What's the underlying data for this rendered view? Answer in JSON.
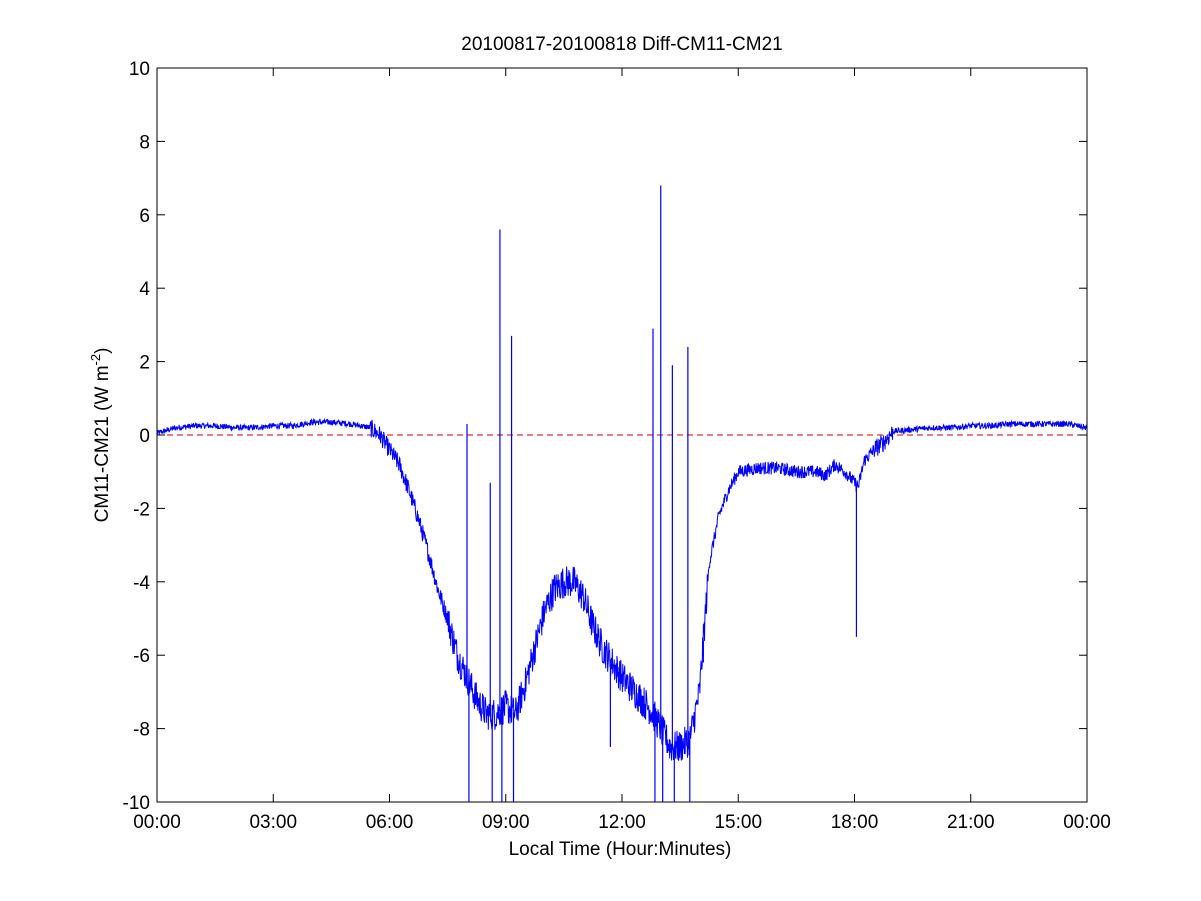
{
  "chart_data": {
    "type": "line",
    "title": "20100817-20100818 Diff-CM11-CM21",
    "xlabel": "Local Time (Hour:Minutes)",
    "ylabel": {
      "main": "CM11-CM21 (W m",
      "sup": "-2",
      "close": ")"
    },
    "xlim": [
      0,
      24
    ],
    "ylim": [
      -10,
      10
    ],
    "x_tick_labels": [
      "00:00",
      "03:00",
      "06:00",
      "09:00",
      "12:00",
      "15:00",
      "18:00",
      "21:00",
      "00:00"
    ],
    "x_tick_values": [
      0,
      3,
      6,
      9,
      12,
      15,
      18,
      21,
      24
    ],
    "y_tick_labels": [
      "10",
      "8",
      "6",
      "4",
      "2",
      "0",
      "-2",
      "-4",
      "-6",
      "-8",
      "-10"
    ],
    "y_tick_values": [
      10,
      8,
      6,
      4,
      2,
      0,
      -2,
      -4,
      -6,
      -8,
      -10
    ],
    "grid": false,
    "reference_line": {
      "y": 0,
      "style": "dashed",
      "color": "#cc0000"
    },
    "series": [
      {
        "color": "#0000ff",
        "x_unit": "hours",
        "x": [
          0,
          0.5,
          1,
          1.5,
          2,
          2.5,
          3,
          3.5,
          4,
          4.5,
          5,
          5.5,
          5.75,
          6,
          6.25,
          6.5,
          6.75,
          7,
          7.25,
          7.5,
          7.75,
          8,
          8.25,
          8.5,
          8.75,
          9,
          9.25,
          9.5,
          9.75,
          10,
          10.25,
          10.5,
          10.75,
          11,
          11.25,
          11.5,
          11.75,
          12,
          12.25,
          12.5,
          12.75,
          13,
          13.25,
          13.5,
          13.75,
          14,
          14.25,
          14.5,
          14.75,
          15,
          15.5,
          16,
          16.5,
          17,
          17.25,
          17.5,
          17.75,
          18,
          18.1,
          18.25,
          18.5,
          18.75,
          19,
          19.5,
          20,
          20.5,
          21,
          21.5,
          22,
          22.5,
          23,
          23.5,
          24
        ],
        "y": [
          0.05,
          0.2,
          0.25,
          0.25,
          0.2,
          0.2,
          0.25,
          0.25,
          0.35,
          0.35,
          0.3,
          0.2,
          0.0,
          -0.4,
          -0.8,
          -1.5,
          -2.3,
          -3.2,
          -4.2,
          -5.0,
          -6.0,
          -6.6,
          -7.2,
          -7.6,
          -7.6,
          -7.4,
          -7.6,
          -6.8,
          -5.8,
          -4.8,
          -4.2,
          -4.0,
          -4.0,
          -4.4,
          -5.2,
          -5.8,
          -6.2,
          -6.6,
          -6.9,
          -7.2,
          -7.5,
          -8.0,
          -8.5,
          -8.5,
          -8.3,
          -7.0,
          -3.5,
          -2.2,
          -1.5,
          -1.0,
          -0.9,
          -0.9,
          -1.0,
          -1.0,
          -1.1,
          -0.8,
          -1.0,
          -1.3,
          -1.4,
          -0.7,
          -0.4,
          -0.2,
          0.1,
          0.15,
          0.2,
          0.2,
          0.25,
          0.25,
          0.3,
          0.3,
          0.3,
          0.3,
          0.2
        ]
      }
    ],
    "spikes": [
      {
        "x": 8.0,
        "y": 0.3
      },
      {
        "x": 8.05,
        "y": -10
      },
      {
        "x": 8.6,
        "y": -1.3
      },
      {
        "x": 8.65,
        "y": -10
      },
      {
        "x": 8.85,
        "y": 5.6
      },
      {
        "x": 8.9,
        "y": -10
      },
      {
        "x": 9.15,
        "y": 2.7
      },
      {
        "x": 9.2,
        "y": -10
      },
      {
        "x": 11.7,
        "y": -8.5
      },
      {
        "x": 12.8,
        "y": 2.9
      },
      {
        "x": 12.85,
        "y": -10
      },
      {
        "x": 13.0,
        "y": 6.8
      },
      {
        "x": 13.05,
        "y": -10
      },
      {
        "x": 13.3,
        "y": 1.9
      },
      {
        "x": 13.35,
        "y": -10
      },
      {
        "x": 13.7,
        "y": 2.4
      },
      {
        "x": 13.75,
        "y": -10
      },
      {
        "x": 14.1,
        "y": -6.2
      },
      {
        "x": 18.05,
        "y": -5.5
      }
    ]
  }
}
